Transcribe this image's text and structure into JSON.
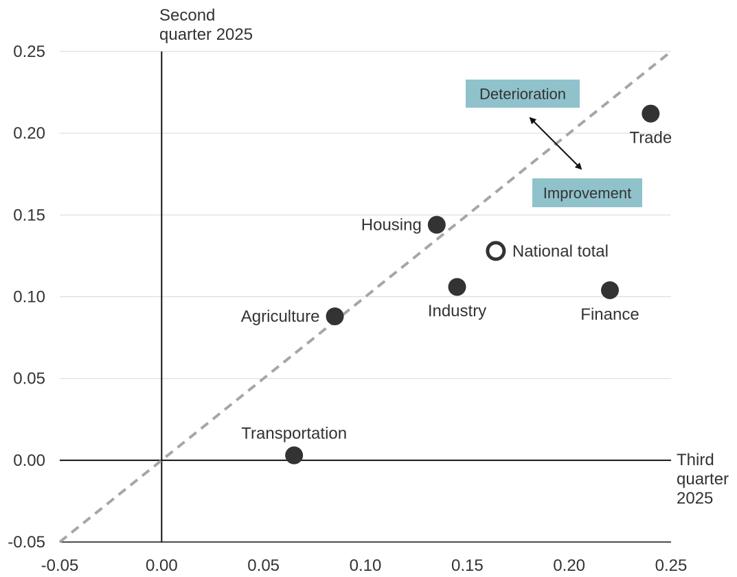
{
  "colors": {
    "grid": "#dddddd",
    "axis": "#111111",
    "diagonal": "#a6a6a6",
    "point_fill": "#333333",
    "hollow_fill": "#ffffff",
    "annotation_box": "#8fc2cb",
    "text": "#333333"
  },
  "chart_data": {
    "type": "scatter",
    "title": "",
    "xlabel": "Third quarter 2025",
    "ylabel": "Second quarter 2025",
    "xlabel_lines": [
      "Third",
      "quarter",
      "2025"
    ],
    "ylabel_lines": [
      "Second",
      "quarter 2025"
    ],
    "xlim": [
      -0.05,
      0.25
    ],
    "ylim": [
      -0.05,
      0.25
    ],
    "x_ticks": [
      -0.05,
      0.0,
      0.05,
      0.1,
      0.15,
      0.2,
      0.25
    ],
    "x_tick_labels": [
      "-0.05",
      "0.00",
      "0.05",
      "0.10",
      "0.15",
      "0.20",
      "0.25"
    ],
    "y_ticks": [
      -0.05,
      0.0,
      0.05,
      0.1,
      0.15,
      0.2,
      0.25
    ],
    "y_tick_labels": [
      "-0.05",
      "0.00",
      "0.05",
      "0.10",
      "0.15",
      "0.20",
      "0.25"
    ],
    "grid": true,
    "reference_line": "y = x",
    "points": [
      {
        "label": "Transportation",
        "x": 0.065,
        "y": 0.003,
        "hollow": false,
        "label_pos": "above"
      },
      {
        "label": "Agriculture",
        "x": 0.085,
        "y": 0.088,
        "hollow": false,
        "label_pos": "left"
      },
      {
        "label": "Housing",
        "x": 0.135,
        "y": 0.144,
        "hollow": false,
        "label_pos": "left"
      },
      {
        "label": "Industry",
        "x": 0.145,
        "y": 0.106,
        "hollow": false,
        "label_pos": "below"
      },
      {
        "label": "National total",
        "x": 0.164,
        "y": 0.128,
        "hollow": true,
        "label_pos": "right"
      },
      {
        "label": "Finance",
        "x": 0.22,
        "y": 0.104,
        "hollow": false,
        "label_pos": "below"
      },
      {
        "label": "Trade",
        "x": 0.24,
        "y": 0.212,
        "hollow": false,
        "label_pos": "below"
      }
    ],
    "annotations": {
      "deterioration": "Deterioration",
      "improvement": "Improvement"
    }
  }
}
